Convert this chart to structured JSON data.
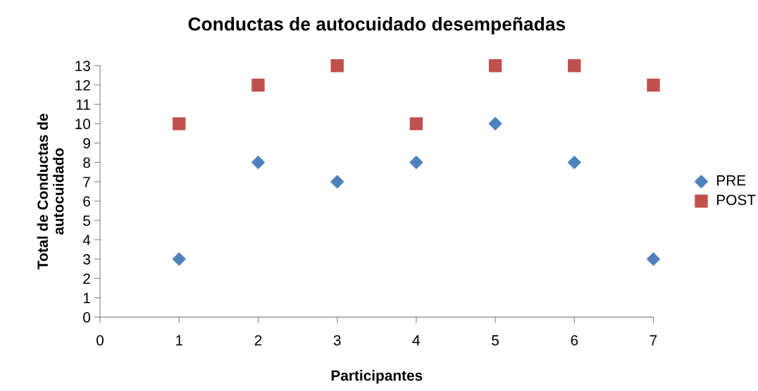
{
  "chart_data": {
    "type": "scatter",
    "title": "Conductas de autocuidado desempeñadas",
    "xlabel": "Participantes",
    "ylabel": "Total de Conductas de\nautocuidado",
    "x": [
      1,
      2,
      3,
      4,
      5,
      6,
      7
    ],
    "series": [
      {
        "name": "PRE",
        "color": "#4f81bd",
        "marker": "diamond",
        "values": [
          3,
          8,
          7,
          8,
          10,
          8,
          3
        ]
      },
      {
        "name": "POST",
        "color": "#c0504d",
        "marker": "square",
        "values": [
          10,
          12,
          13,
          10,
          13,
          13,
          12
        ]
      }
    ],
    "xlim": [
      0,
      7
    ],
    "xticks": [
      0,
      1,
      2,
      3,
      4,
      5,
      6,
      7
    ],
    "ylim": [
      0,
      13
    ],
    "yticks": [
      0,
      1,
      2,
      3,
      4,
      5,
      6,
      7,
      8,
      9,
      10,
      11,
      12,
      13
    ],
    "grid": false,
    "legend": "right"
  }
}
